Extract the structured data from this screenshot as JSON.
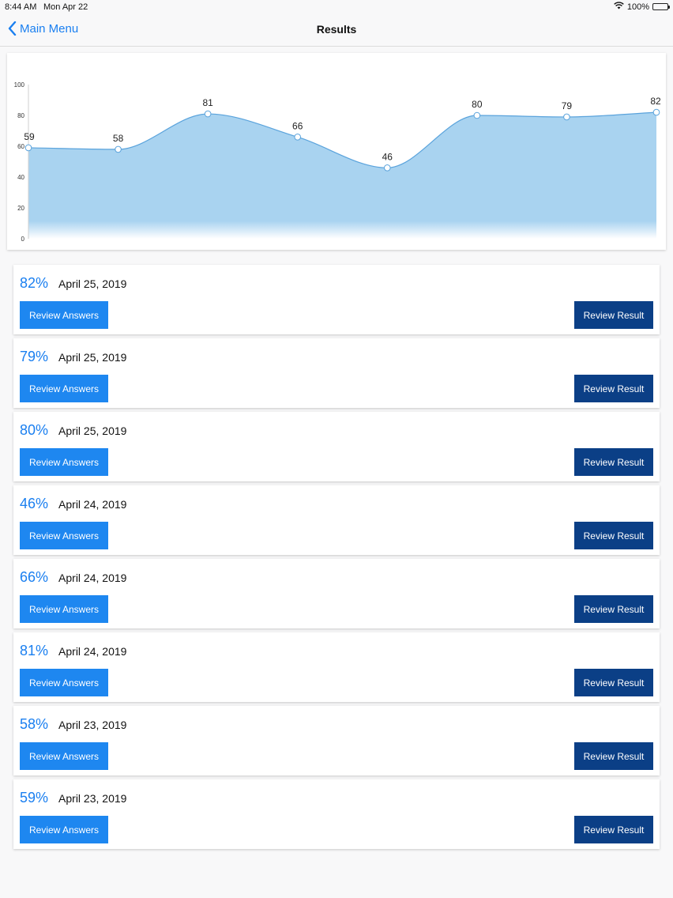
{
  "status_bar": {
    "time": "8:44 AM",
    "date": "Mon Apr 22",
    "battery": "100%"
  },
  "nav": {
    "back_label": "Main Menu",
    "title": "Results"
  },
  "colors": {
    "accent": "#1a7ff0",
    "answers_button": "#1e87f0",
    "result_button": "#0b3f86",
    "chart_fill": "#a9d3f0",
    "chart_line": "#5aa3dc"
  },
  "chart_data": {
    "type": "area",
    "x": [
      1,
      2,
      3,
      4,
      5,
      6,
      7,
      8
    ],
    "values": [
      59,
      58,
      81,
      66,
      46,
      80,
      79,
      82
    ],
    "data_labels": [
      "59",
      "58",
      "81",
      "66",
      "46",
      "80",
      "79",
      "82"
    ],
    "ylim": [
      0,
      100
    ],
    "yticks": [
      "0",
      "20",
      "40",
      "60",
      "80",
      "100"
    ],
    "title": "",
    "xlabel": "",
    "ylabel": "",
    "grid": false
  },
  "results": [
    {
      "score": "82%",
      "date": "April 25, 2019",
      "answers_label": "Review Answers",
      "result_label": "Review Result"
    },
    {
      "score": "79%",
      "date": "April 25, 2019",
      "answers_label": "Review Answers",
      "result_label": "Review Result"
    },
    {
      "score": "80%",
      "date": "April 25, 2019",
      "answers_label": "Review Answers",
      "result_label": "Review Result"
    },
    {
      "score": "46%",
      "date": "April 24, 2019",
      "answers_label": "Review Answers",
      "result_label": "Review Result"
    },
    {
      "score": "66%",
      "date": "April 24, 2019",
      "answers_label": "Review Answers",
      "result_label": "Review Result"
    },
    {
      "score": "81%",
      "date": "April 24, 2019",
      "answers_label": "Review Answers",
      "result_label": "Review Result"
    },
    {
      "score": "58%",
      "date": "April 23, 2019",
      "answers_label": "Review Answers",
      "result_label": "Review Result"
    },
    {
      "score": "59%",
      "date": "April 23, 2019",
      "answers_label": "Review Answers",
      "result_label": "Review Result"
    }
  ]
}
